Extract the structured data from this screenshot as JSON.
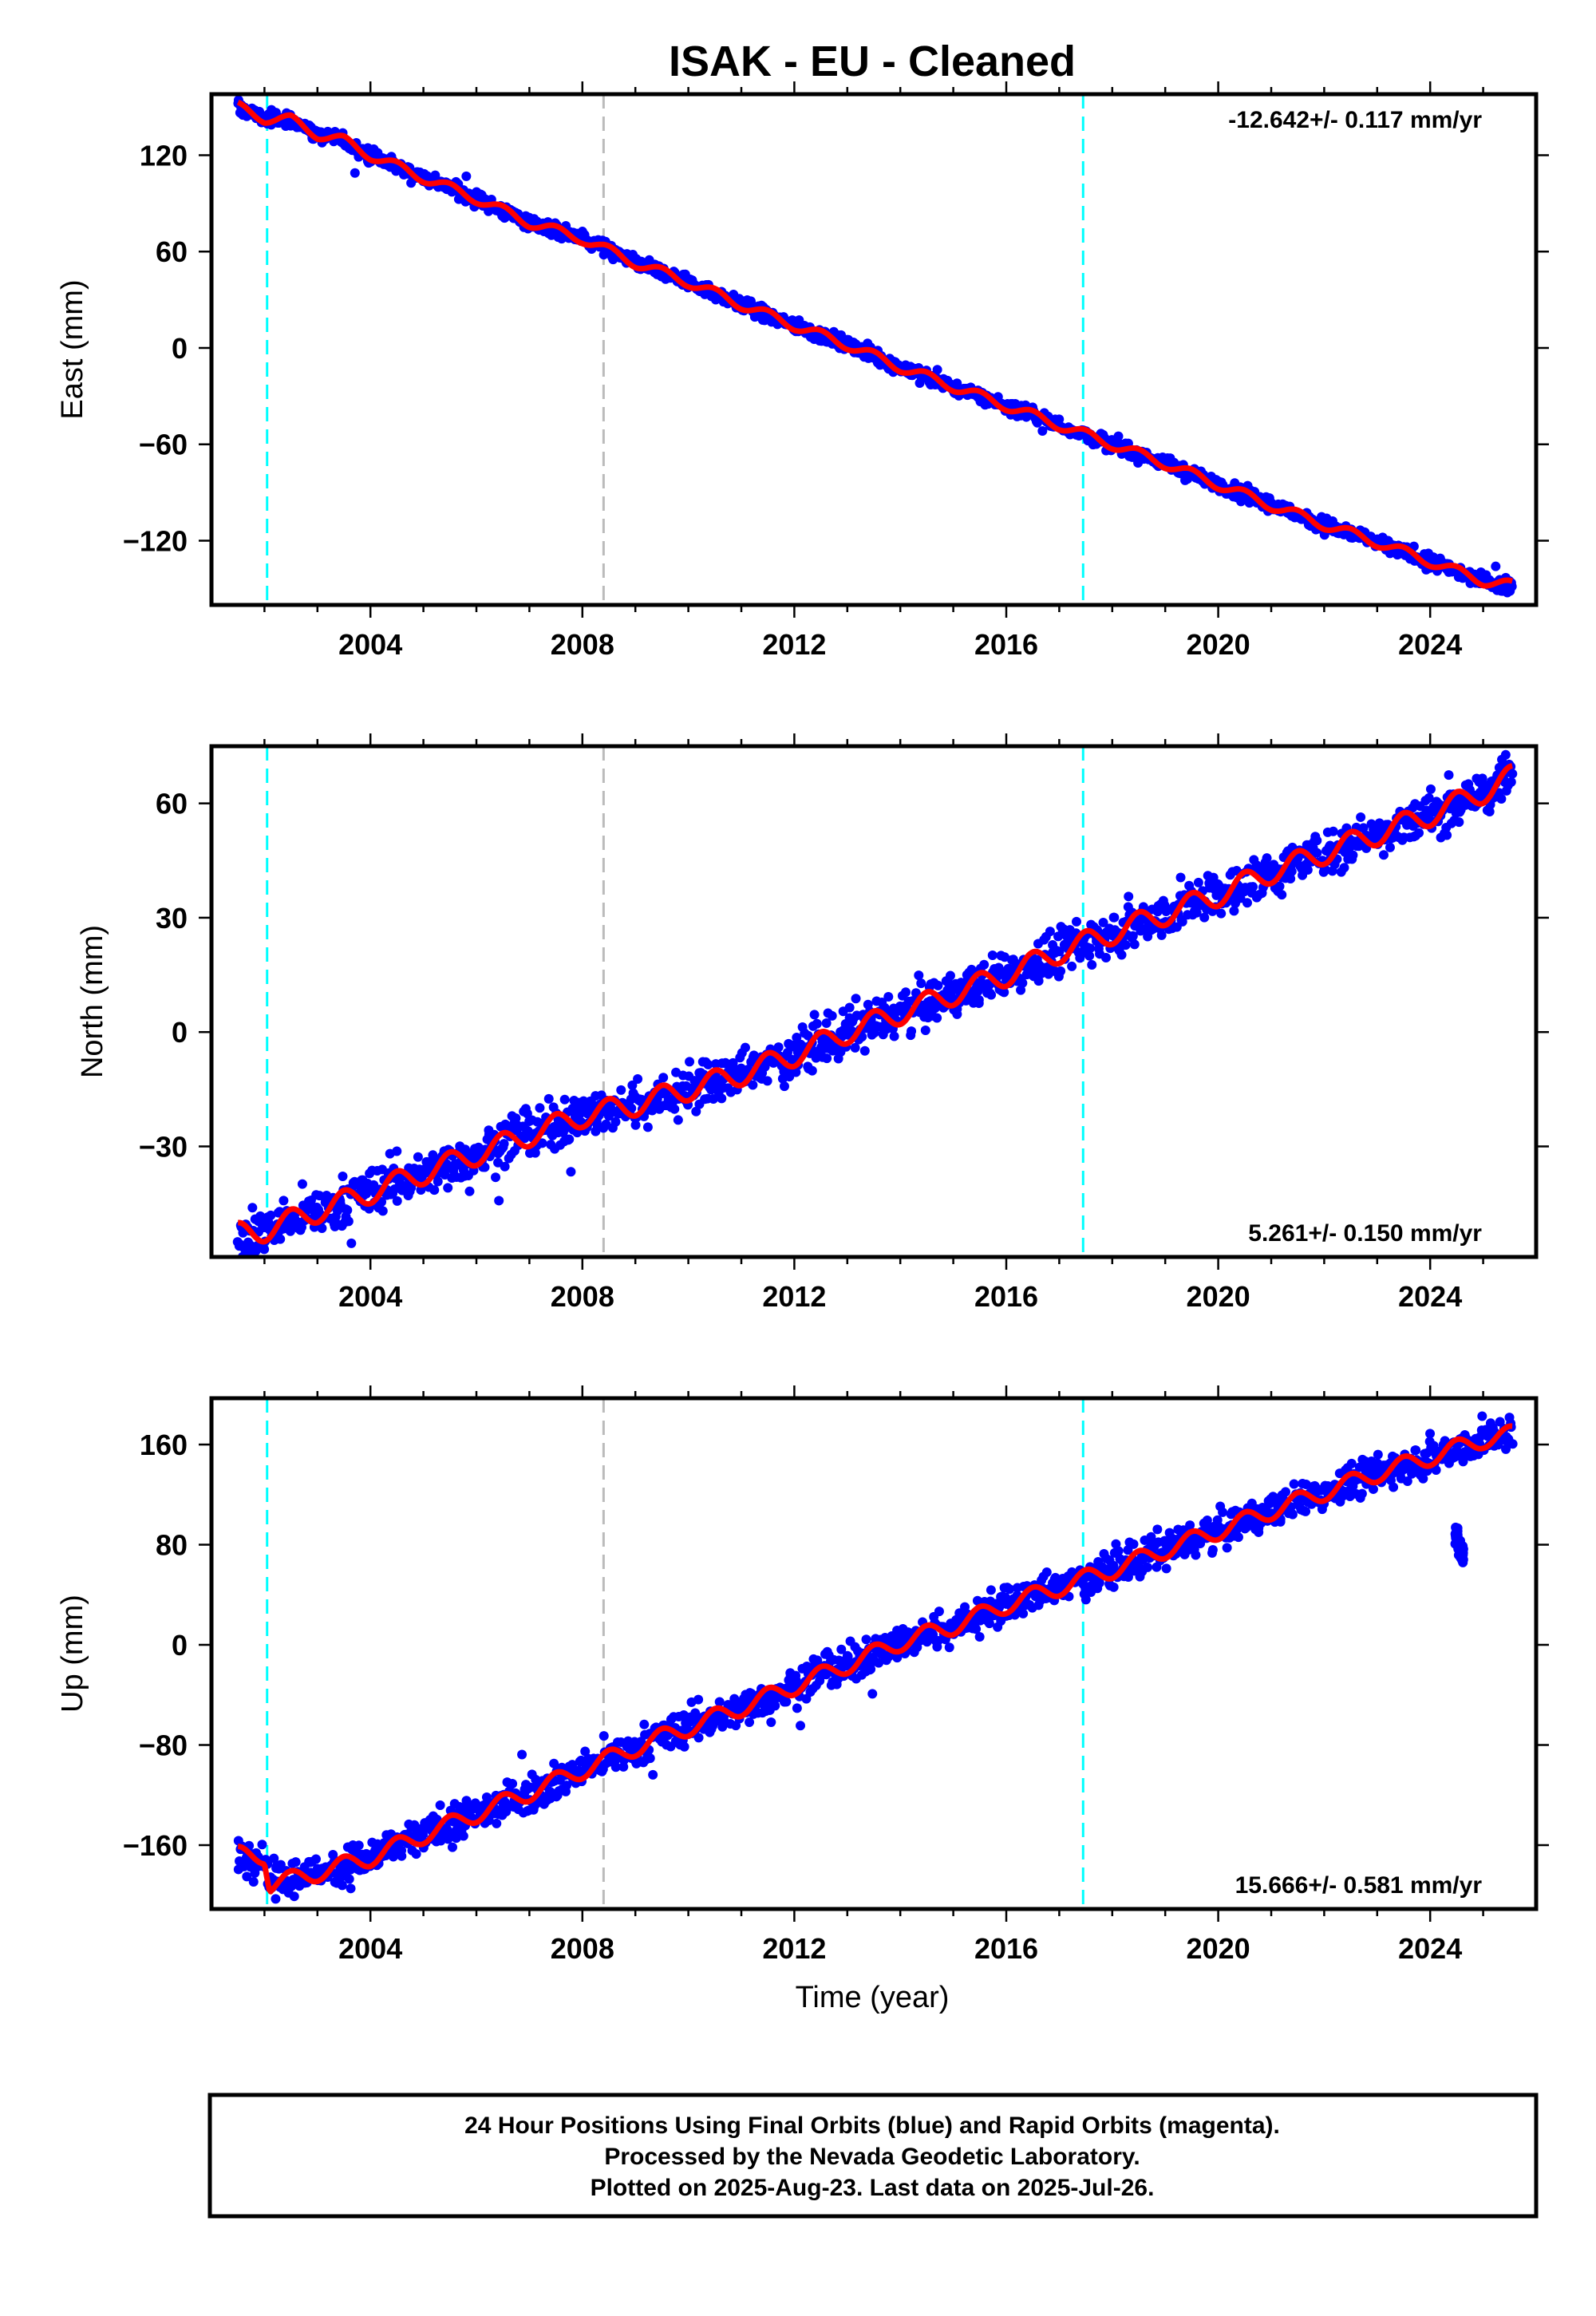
{
  "title": "ISAK  - EU - Cleaned",
  "xlabel": "Time (year)",
  "footer": {
    "line1": "24 Hour Positions Using Final Orbits (blue) and Rapid Orbits (magenta).",
    "line2": "Processed by the Nevada Geodetic Laboratory.",
    "line3": "Plotted on 2025-Aug-23. Last data on 2025-Jul-26."
  },
  "colors": {
    "data_points": "#0000ff",
    "model_fit": "#ff0000",
    "equipment_change_lines": "#00ffff",
    "earthquake_line": "#bbbbbb"
  },
  "chart_data": [
    {
      "type": "scatter",
      "component": "east",
      "ylabel": "East (mm)",
      "rate_label": "-12.642+/- 0.117 mm/yr",
      "xlim": [
        2001.0,
        2026.0
      ],
      "ylim": [
        -160,
        158
      ],
      "xticks": [
        2004,
        2008,
        2012,
        2016,
        2020,
        2024
      ],
      "yticks": [
        -120,
        -60,
        0,
        60,
        120
      ],
      "ytick_labels": [
        "−120",
        "−60",
        "0",
        "60",
        "120"
      ],
      "vertical_lines": {
        "cyan": [
          2002.05,
          2017.45
        ],
        "gray": [
          2008.4
        ]
      },
      "series": [
        {
          "values_description": "daily positions",
          "x": [
            2001.5,
            2002.0,
            2002.5,
            2003.0,
            2003.5,
            2004.0,
            2005.0,
            2006.0,
            2007.0,
            2008.0,
            2009.0,
            2010.0,
            2011.0,
            2012.0,
            2013.0,
            2014.0,
            2015.0,
            2016.0,
            2017.0,
            2018.0,
            2019.0,
            2020.0,
            2021.0,
            2022.0,
            2023.0,
            2024.0,
            2025.0,
            2025.55
          ],
          "y": [
            150,
            143,
            142,
            133,
            129,
            120,
            106,
            93,
            78,
            68,
            53,
            41,
            27,
            14,
            2,
            -12,
            -24,
            -36,
            -48,
            -60,
            -72,
            -85,
            -98,
            -110,
            -121,
            -133,
            -145,
            -148
          ]
        }
      ],
      "fit": {
        "rate": -12.642,
        "rate_error": 0.117,
        "annual_amplitude": 3.0,
        "jumps": [
          {
            "x": 2002.05,
            "size": -4
          }
        ]
      }
    },
    {
      "type": "scatter",
      "component": "north",
      "ylabel": "North (mm)",
      "rate_label": "5.261+/- 0.150 mm/yr",
      "xlim": [
        2001.0,
        2026.0
      ],
      "ylim": [
        -59,
        75
      ],
      "xticks": [
        2004,
        2008,
        2012,
        2016,
        2020,
        2024
      ],
      "yticks": [
        -30,
        0,
        30,
        60
      ],
      "ytick_labels": [
        "−30",
        "0",
        "30",
        "60"
      ],
      "vertical_lines": {
        "cyan": [
          2002.05,
          2017.45
        ],
        "gray": [
          2008.4
        ]
      },
      "series": [
        {
          "values_description": "daily positions",
          "x": [
            2001.5,
            2002.0,
            2003.0,
            2004.0,
            2005.0,
            2006.0,
            2007.0,
            2008.0,
            2009.0,
            2010.0,
            2011.0,
            2012.0,
            2013.0,
            2014.0,
            2015.0,
            2016.0,
            2017.0,
            2018.0,
            2019.0,
            2020.0,
            2021.0,
            2022.0,
            2023.0,
            2024.0,
            2025.0,
            2025.55
          ],
          "y": [
            -53,
            -52,
            -47,
            -42,
            -37,
            -32,
            -27,
            -22,
            -19,
            -15,
            -11,
            -6,
            0,
            5,
            10,
            15,
            21,
            26,
            31,
            36,
            42,
            47,
            52,
            57,
            63,
            67
          ]
        }
      ],
      "fit": {
        "rate": 5.261,
        "rate_error": 0.15,
        "annual_amplitude": 3.0,
        "jumps": [
          {
            "x": 2008.4,
            "size": -3
          }
        ]
      }
    },
    {
      "type": "scatter",
      "component": "up",
      "ylabel": "Up (mm)",
      "rate_label": "15.666+/- 0.581 mm/yr",
      "xlim": [
        2001.0,
        2026.0
      ],
      "ylim": [
        -211,
        197
      ],
      "xticks": [
        2004,
        2008,
        2012,
        2016,
        2020,
        2024
      ],
      "yticks": [
        -160,
        -80,
        0,
        80,
        160
      ],
      "ytick_labels": [
        "−160",
        "−80",
        "0",
        "80",
        "160"
      ],
      "vertical_lines": {
        "cyan": [
          2002.05,
          2017.45
        ],
        "gray": [
          2008.4
        ]
      },
      "series": [
        {
          "values_description": "daily positions",
          "x": [
            2001.5,
            2002.0,
            2002.1,
            2003.0,
            2004.0,
            2005.0,
            2006.0,
            2007.0,
            2008.0,
            2009.0,
            2010.0,
            2011.0,
            2012.0,
            2013.0,
            2014.0,
            2015.0,
            2016.0,
            2017.0,
            2018.0,
            2019.0,
            2020.0,
            2021.0,
            2022.0,
            2023.0,
            2024.0,
            2025.0,
            2025.55
          ],
          "y": [
            -168,
            -168,
            -192,
            -182,
            -170,
            -152,
            -135,
            -118,
            -100,
            -82,
            -66,
            -50,
            -33,
            -16,
            2,
            15,
            32,
            46,
            60,
            76,
            91,
            107,
            122,
            137,
            150,
            164,
            168
          ]
        },
        {
          "values_description": "outlier cluster",
          "x": [
            2024.5,
            2024.55,
            2024.6
          ],
          "y": [
            88,
            78,
            72
          ]
        }
      ],
      "fit": {
        "rate": 15.666,
        "rate_error": 0.581,
        "annual_amplitude": 7.0,
        "jumps": [
          {
            "x": 2002.05,
            "size": -24
          }
        ]
      }
    }
  ]
}
